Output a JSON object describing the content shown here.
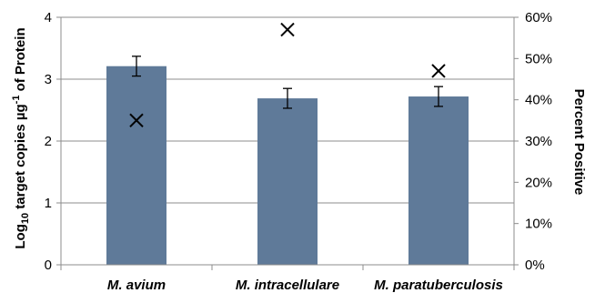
{
  "chart_data": {
    "type": "bar",
    "categories": [
      "M. avium",
      "M. intracellulare",
      "M. paratuberculosis"
    ],
    "series": [
      {
        "values": [
          3.21,
          2.69,
          2.72
        ],
        "error": [
          0.16,
          0.16,
          0.16
        ],
        "axis": "left",
        "color": "#5f7a99"
      },
      {
        "values": [
          35,
          57,
          47
        ],
        "axis": "right",
        "marker": "x",
        "unit": "%"
      }
    ],
    "ylabel_main": "Log",
    "ylabel_sub": "10",
    "ylabel_rest": " target copies µg",
    "ylabel_sup": "-1",
    "ylabel_end": " of Protein",
    "ylabel_right": "Percent Positive",
    "ylim": [
      0,
      4
    ],
    "yticks": [
      "0",
      "1",
      "2",
      "3",
      "4"
    ],
    "ylim_right": [
      0,
      60
    ],
    "yticks_right": [
      "0%",
      "10%",
      "20%",
      "30%",
      "40%",
      "50%",
      "60%"
    ],
    "grid": true
  }
}
